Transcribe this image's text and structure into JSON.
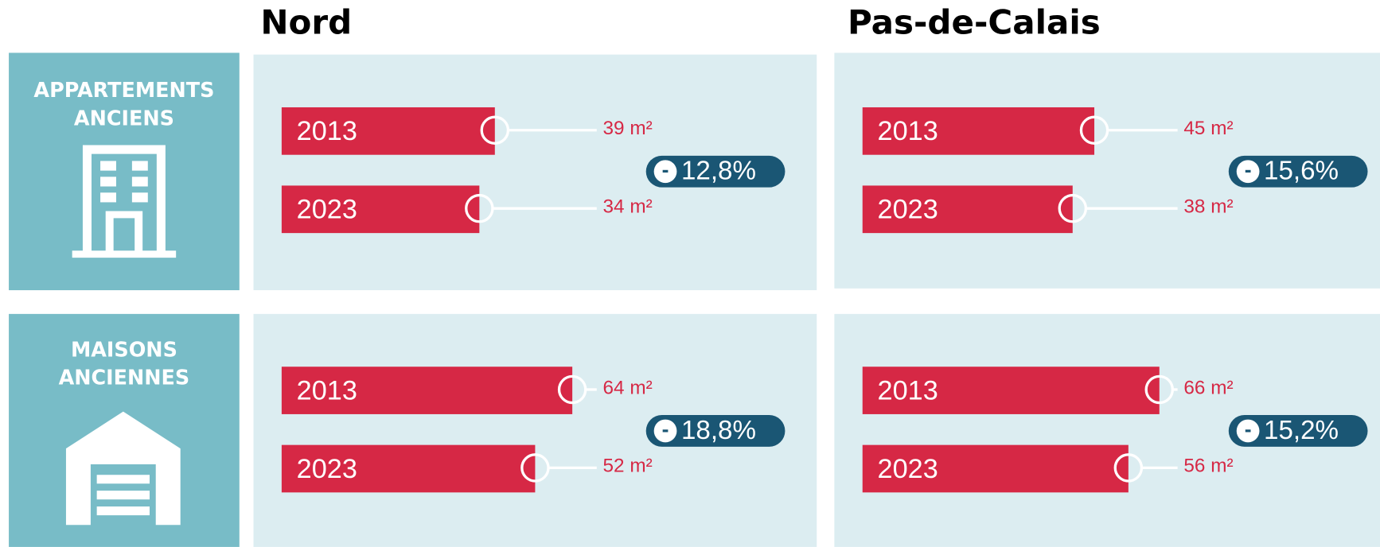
{
  "titles": [
    "Nord",
    "Pas-de-Calais"
  ],
  "rows": [
    {
      "lines": [
        "APPARTEMENTS",
        "ANCIENS"
      ],
      "regions": [
        {
          "years": [
            "2013",
            "2023"
          ],
          "values": [
            39,
            34
          ],
          "value_labels": [
            "39 m²",
            "34 m²"
          ],
          "change_sign": "-",
          "change": "12,8%"
        },
        {
          "years": [
            "2013",
            "2023"
          ],
          "values": [
            45,
            38
          ],
          "value_labels": [
            "45 m²",
            "38 m²"
          ],
          "change_sign": "-",
          "change": "15,6%"
        }
      ]
    },
    {
      "lines": [
        "MAISONS",
        "ANCIENNES"
      ],
      "regions": [
        {
          "years": [
            "2013",
            "2023"
          ],
          "values": [
            64,
            52
          ],
          "value_labels": [
            "64 m²",
            "52 m²"
          ],
          "change_sign": "-",
          "change": "18,8%"
        },
        {
          "years": [
            "2013",
            "2023"
          ],
          "values": [
            66,
            56
          ],
          "value_labels": [
            "66 m²",
            "56 m²"
          ],
          "change_sign": "-",
          "change": "15,2%"
        }
      ]
    }
  ]
}
